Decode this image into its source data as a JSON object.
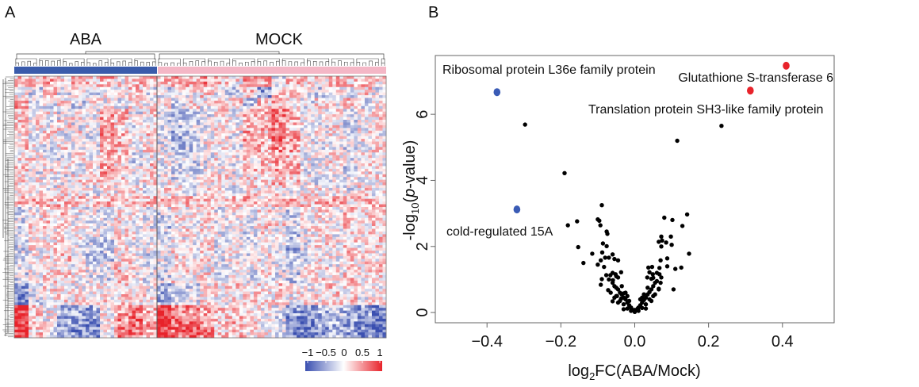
{
  "panels": {
    "a_label": "A",
    "b_label": "B"
  },
  "chart_data": [
    {
      "type": "heatmap",
      "column_groups": [
        {
          "name": "ABA",
          "color": "#3a5bab",
          "columns": 10
        },
        {
          "name": "MOCK",
          "color": "#f4b7c6",
          "columns": 16
        }
      ],
      "colorscale": {
        "min": -1,
        "max": 1,
        "low": "#3a4fb0",
        "mid": "#ffffff",
        "high": "#e8222a",
        "tick_labels": [
          "−1",
          "−0.5",
          "0",
          "0.5",
          "1"
        ]
      },
      "row_dendrogram": true,
      "column_dendrogram": true,
      "matrix_coarse": [
        [
          0.3,
          0.2,
          0.4,
          0.1,
          0.3,
          0.2,
          0.4,
          0.1,
          0.3,
          0.2,
          0.2,
          0.4,
          0.3,
          0.5,
          0.2,
          0.1,
          0.4,
          0.3,
          -0.2,
          0.3,
          0.2,
          0.1,
          0.3,
          0.2,
          0.4,
          0.1
        ],
        [
          0.1,
          -0.2,
          0.2,
          -0.1,
          0.1,
          -0.2,
          0.1,
          0,
          0.2,
          -0.1,
          -0.2,
          0.1,
          0,
          0.2,
          -0.1,
          -0.3,
          0.2,
          -0.5,
          0.3,
          0.1,
          0,
          -0.2,
          0.1,
          -0.1,
          0.2,
          -0.1
        ],
        [
          0.4,
          0,
          -0.1,
          0.1,
          -0.2,
          0.1,
          0,
          -0.1,
          0.1,
          0,
          0.1,
          -0.2,
          0.1,
          0,
          0.1,
          0.2,
          -0.3,
          0.2,
          0.3,
          0.1,
          -0.1,
          0.1,
          0,
          0.2,
          -0.1,
          0
        ],
        [
          0.2,
          -0.1,
          0.1,
          -0.1,
          0.1,
          0,
          0.4,
          0.3,
          -0.1,
          0.1,
          -0.1,
          -0.3,
          -0.3,
          -0.1,
          0.1,
          -0.1,
          0.4,
          0.3,
          0.5,
          0.4,
          0,
          -0.1,
          0.1,
          -0.2,
          0,
          0.1
        ],
        [
          0.2,
          0.1,
          -0.1,
          0.1,
          -0.1,
          0,
          0.4,
          0.2,
          -0.1,
          0.1,
          -0.2,
          -0.3,
          -0.2,
          -0.1,
          0.1,
          0,
          0.3,
          0.3,
          0.5,
          0.3,
          0,
          -0.1,
          0.1,
          -0.2,
          0,
          0.1
        ],
        [
          0.1,
          -0.1,
          0.1,
          -0.1,
          0.1,
          -0.1,
          0.5,
          0.3,
          0,
          0.2,
          -0.1,
          -0.4,
          -0.3,
          -0.1,
          0,
          -0.1,
          0.4,
          0.2,
          0.6,
          0.4,
          -0.1,
          0,
          0.1,
          -0.1,
          0.1,
          0
        ],
        [
          0.2,
          0,
          -0.1,
          0.1,
          0,
          -0.1,
          0.4,
          0.3,
          -0.1,
          0.1,
          -0.1,
          -0.3,
          -0.3,
          0,
          0.1,
          -0.1,
          0.3,
          0.3,
          0.5,
          0.4,
          0,
          -0.1,
          0,
          -0.2,
          0,
          0.1
        ],
        [
          0.1,
          0.1,
          0,
          -0.1,
          0.1,
          0,
          0.3,
          0.2,
          -0.2,
          0.1,
          0,
          -0.2,
          -0.2,
          -0.1,
          0.1,
          0,
          0.2,
          0.2,
          0.4,
          0.3,
          0,
          -0.1,
          0.1,
          -0.1,
          0,
          0.1
        ],
        [
          0.2,
          -0.1,
          0.1,
          0,
          -0.1,
          0,
          0.4,
          0.2,
          -0.1,
          0.2,
          -0.1,
          -0.3,
          -0.2,
          -0.1,
          0,
          -0.1,
          0.3,
          0.2,
          0.4,
          0.3,
          -0.1,
          0,
          0.1,
          -0.2,
          0.1,
          0
        ],
        [
          0.1,
          0,
          0,
          -0.1,
          0.1,
          0.1,
          0.3,
          0.2,
          0,
          0.1,
          0,
          -0.2,
          -0.1,
          0,
          0.1,
          0,
          0.2,
          0.1,
          0.3,
          0.2,
          0,
          -0.1,
          0,
          -0.1,
          0,
          0.1
        ],
        [
          0,
          0.1,
          -0.1,
          0.1,
          0,
          -0.1,
          0.1,
          0,
          0.1,
          -0.1,
          0.1,
          0,
          -0.1,
          0.1,
          0,
          -0.1,
          0.1,
          0,
          0.1,
          -0.1,
          0,
          0.1,
          0,
          -0.1,
          0.1,
          0
        ],
        [
          0.3,
          0.3,
          0.2,
          0.3,
          0.3,
          0.2,
          0.3,
          0.3,
          0.2,
          0.3,
          0.3,
          0.2,
          0.3,
          0.3,
          0.2,
          0.3,
          0.3,
          0.2,
          0.3,
          0.3,
          0.2,
          0.3,
          0.3,
          0.2,
          0.3,
          0.3
        ],
        [
          -0.2,
          0,
          0.1,
          0.2,
          0,
          -0.1,
          -0.2,
          0.1,
          0,
          -0.1,
          -0.2,
          0.1,
          0,
          0.1,
          -0.1,
          0,
          -0.2,
          0.1,
          -0.1,
          -0.3,
          0,
          0.1,
          0,
          0.2,
          0.1,
          0.2
        ],
        [
          -0.2,
          0.1,
          0.2,
          0.2,
          0,
          -0.1,
          -0.1,
          0.1,
          0,
          -0.1,
          -0.3,
          0.1,
          0,
          0.1,
          -0.1,
          0,
          -0.1,
          0.2,
          0.1,
          -0.2,
          0,
          0.1,
          0,
          0.2,
          0.1,
          0.2
        ],
        [
          -0.1,
          0,
          0.1,
          0.1,
          0,
          -0.1,
          -0.2,
          0.1,
          0,
          0,
          -0.2,
          0,
          0.1,
          0.1,
          -0.1,
          0,
          -0.2,
          0.1,
          -0.1,
          -0.3,
          0,
          0.1,
          0,
          0.1,
          0.1,
          0.2
        ],
        [
          -0.2,
          0.1,
          0.1,
          0.2,
          -0.1,
          -0.2,
          -0.3,
          0.1,
          0,
          -0.1,
          -0.2,
          0.1,
          0,
          0.1,
          -0.1,
          0,
          -0.2,
          0.1,
          -0.1,
          -0.4,
          -0.1,
          0.1,
          0,
          0.2,
          0,
          0.2
        ],
        [
          -0.2,
          0,
          0.1,
          0.2,
          0,
          -0.3,
          -0.3,
          0.1,
          0,
          -0.2,
          -0.1,
          0.1,
          0,
          0.1,
          -0.1,
          0,
          -0.2,
          0.1,
          0,
          -0.3,
          -0.2,
          0.1,
          0,
          0.2,
          0.1,
          0.1
        ],
        [
          -0.1,
          0.1,
          0.1,
          0.1,
          0,
          -0.1,
          -0.1,
          0.2,
          0.1,
          -0.1,
          -0.2,
          0.1,
          0.1,
          0,
          -0.1,
          0,
          -0.1,
          0.1,
          -0.1,
          -0.2,
          0,
          0.1,
          0,
          0.1,
          0.1,
          0.2
        ],
        [
          -0.2,
          0,
          0.1,
          0.2,
          0,
          -0.1,
          -0.2,
          0.2,
          0,
          -0.1,
          -0.2,
          0.1,
          0,
          0.1,
          -0.1,
          0,
          -0.2,
          0.1,
          -0.1,
          -0.3,
          0,
          0.1,
          0,
          0.2,
          0.1,
          0.2
        ],
        [
          -0.6,
          -0.2,
          0.1,
          0.1,
          0,
          0.1,
          0.1,
          0.2,
          0.1,
          0,
          -0.4,
          -0.3,
          -0.2,
          0.1,
          0.1,
          0.2,
          0.1,
          0.1,
          0.2,
          0.1,
          0,
          0.1,
          0.2,
          0.1,
          0.1,
          0
        ],
        [
          -0.6,
          -0.2,
          0,
          0.1,
          0.1,
          0,
          0.1,
          0.2,
          0.1,
          0.1,
          -0.5,
          -0.3,
          -0.2,
          0.1,
          0,
          0.1,
          0.2,
          0.1,
          0.1,
          0,
          0.1,
          0.1,
          0.1,
          0.2,
          0,
          0.1
        ],
        [
          0.9,
          0.2,
          0,
          -0.4,
          -0.5,
          -0.5,
          0,
          0.4,
          0.5,
          0.3,
          0.9,
          0.5,
          0.5,
          0.4,
          0.2,
          0.3,
          0.1,
          0,
          -0.2,
          -0.5,
          -0.6,
          -0.4,
          -0.3,
          -0.4,
          -0.5,
          -0.7
        ],
        [
          0.9,
          0.2,
          0,
          -0.5,
          -0.6,
          -0.6,
          0,
          0.5,
          0.6,
          0.4,
          0.9,
          0.6,
          0.6,
          0.5,
          0.2,
          0.3,
          0.1,
          0,
          -0.2,
          -0.6,
          -0.7,
          -0.5,
          -0.4,
          -0.5,
          -0.6,
          -0.8
        ],
        [
          0.9,
          0.2,
          -0.1,
          -0.5,
          -0.6,
          -0.6,
          0,
          0.5,
          0.6,
          0.4,
          0.9,
          0.6,
          0.7,
          0.5,
          0.2,
          0.3,
          0.1,
          0,
          -0.2,
          -0.6,
          -0.7,
          -0.5,
          -0.4,
          -0.5,
          -0.6,
          -0.8
        ]
      ]
    },
    {
      "type": "scatter",
      "xlabel": "log2FC(ABA/Mock)",
      "xlabel_parts": {
        "pre": "log",
        "sub": "2",
        "post": "FC(ABA/Mock)"
      },
      "ylabel_parts": {
        "pre": "-log",
        "sub": "10",
        "mid": "(",
        "ital": "p",
        "post": "-value)"
      },
      "xlim": [
        -0.54,
        0.54
      ],
      "ylim": [
        -0.31,
        7.78
      ],
      "xticks": [
        -0.4,
        -0.2,
        0.0,
        0.2,
        0.4
      ],
      "xtick_labels": [
        "−0.4",
        "−0.2",
        "0.0",
        "0.2",
        "0.4"
      ],
      "yticks": [
        0,
        2,
        4,
        6
      ],
      "ytick_labels": [
        "0",
        "2",
        "4",
        "6"
      ],
      "grid": false,
      "highlighted": [
        {
          "label": "Ribosomal protein L36e family protein",
          "x": -0.373,
          "y": 6.67,
          "color": "#3a5bb5"
        },
        {
          "label": "cold-regulated 15A",
          "x": -0.319,
          "y": 3.12,
          "color": "#3a5bb5"
        },
        {
          "label": "Glutathione S-transferase 6",
          "x": 0.41,
          "y": 7.47,
          "color": "#e8232b"
        },
        {
          "label": "Translation protein SH3-like family protein",
          "x": 0.313,
          "y": 6.72,
          "color": "#e8232b"
        }
      ],
      "point_color": "#000000",
      "points": [
        [
          -0.297,
          5.69
        ],
        [
          0.235,
          5.65
        ],
        [
          0.115,
          5.2
        ],
        [
          -0.19,
          4.22
        ],
        [
          -0.089,
          3.25
        ],
        [
          0.142,
          2.97
        ],
        [
          0.08,
          2.87
        ],
        [
          0.102,
          2.8
        ],
        [
          -0.156,
          2.76
        ],
        [
          -0.181,
          2.64
        ],
        [
          -0.1,
          2.82
        ],
        [
          -0.096,
          2.78
        ],
        [
          -0.093,
          2.64
        ],
        [
          0.129,
          2.62
        ],
        [
          -0.076,
          2.45
        ],
        [
          -0.074,
          2.38
        ],
        [
          0.072,
          2.3
        ],
        [
          0.074,
          2.18
        ],
        [
          0.065,
          2.14
        ],
        [
          0.085,
          2.12
        ],
        [
          0.098,
          2.3
        ],
        [
          0.1,
          2.05
        ],
        [
          -0.086,
          2.09
        ],
        [
          -0.076,
          2.01
        ],
        [
          -0.153,
          1.98
        ],
        [
          0.072,
          2.0
        ],
        [
          0.147,
          1.78
        ],
        [
          -0.115,
          1.78
        ],
        [
          -0.088,
          1.82
        ],
        [
          -0.08,
          1.66
        ],
        [
          -0.07,
          1.66
        ],
        [
          -0.06,
          1.76
        ],
        [
          -0.055,
          1.62
        ],
        [
          -0.045,
          1.58
        ],
        [
          -0.092,
          1.58
        ],
        [
          -0.1,
          1.45
        ],
        [
          -0.083,
          1.38
        ],
        [
          -0.139,
          1.5
        ],
        [
          0.088,
          1.64
        ],
        [
          0.07,
          1.58
        ],
        [
          0.088,
          1.4
        ],
        [
          0.067,
          1.35
        ],
        [
          0.11,
          1.32
        ],
        [
          0.126,
          1.36
        ],
        [
          0.037,
          1.36
        ],
        [
          0.047,
          1.38
        ],
        [
          0.04,
          1.22
        ],
        [
          0.049,
          1.16
        ],
        [
          0.067,
          1.16
        ],
        [
          0.072,
          1.06
        ],
        [
          0.034,
          1.06
        ],
        [
          0.045,
          1.02
        ],
        [
          -0.077,
          1.13
        ],
        [
          -0.066,
          1.13
        ],
        [
          -0.052,
          1.16
        ],
        [
          -0.037,
          1.22
        ],
        [
          -0.059,
          0.98
        ],
        [
          -0.045,
          1.06
        ],
        [
          -0.089,
          1.01
        ],
        [
          -0.092,
          0.84
        ],
        [
          0.105,
          0.7
        ],
        [
          0.065,
          0.72
        ],
        [
          -0.072,
          0.68
        ],
        [
          -0.06,
          0.34
        ],
        [
          -0.048,
          0.5
        ],
        [
          -0.037,
          0.42
        ],
        [
          -0.03,
          0.58
        ],
        [
          -0.06,
          0.9
        ],
        [
          -0.055,
          0.8
        ],
        [
          -0.05,
          0.75
        ],
        [
          -0.045,
          0.7
        ],
        [
          -0.04,
          0.6
        ],
        [
          -0.035,
          0.55
        ],
        [
          -0.03,
          0.45
        ],
        [
          -0.025,
          0.4
        ],
        [
          -0.02,
          0.3
        ],
        [
          -0.015,
          0.22
        ],
        [
          -0.01,
          0.15
        ],
        [
          -0.005,
          0.07
        ],
        [
          0,
          0.02
        ],
        [
          0.005,
          0.08
        ],
        [
          0.01,
          0.15
        ],
        [
          0.015,
          0.22
        ],
        [
          0.02,
          0.3
        ],
        [
          0.025,
          0.38
        ],
        [
          0.03,
          0.45
        ],
        [
          0.035,
          0.55
        ],
        [
          0.04,
          0.62
        ],
        [
          0.045,
          0.7
        ],
        [
          0.05,
          0.8
        ],
        [
          0.055,
          0.9
        ],
        [
          0.06,
          0.95
        ],
        [
          -0.05,
          0.5
        ],
        [
          -0.04,
          0.35
        ],
        [
          -0.03,
          0.25
        ],
        [
          -0.02,
          0.12
        ],
        [
          -0.01,
          0.05
        ],
        [
          0.01,
          0.05
        ],
        [
          0.02,
          0.14
        ],
        [
          0.03,
          0.25
        ],
        [
          0.04,
          0.4
        ],
        [
          0.05,
          0.5
        ],
        [
          -0.065,
          0.6
        ],
        [
          -0.055,
          0.45
        ],
        [
          -0.045,
          0.3
        ],
        [
          0.065,
          0.7
        ],
        [
          0.055,
          0.55
        ],
        [
          0.045,
          0.35
        ],
        [
          -0.07,
          1.0
        ],
        [
          0.07,
          0.9
        ],
        [
          -0.035,
          0.8
        ],
        [
          0.035,
          0.75
        ],
        [
          -0.025,
          0.6
        ],
        [
          0.025,
          0.55
        ],
        [
          -0.015,
          0.35
        ],
        [
          0.015,
          0.4
        ],
        [
          -0.05,
          1.1
        ],
        [
          0.05,
          1.05
        ],
        [
          -0.06,
          1.2
        ],
        [
          0.06,
          1.2
        ],
        [
          -0.008,
          0.1
        ],
        [
          0.008,
          0.12
        ],
        [
          0.0,
          0.08
        ],
        [
          -0.03,
          0.1
        ],
        [
          0.03,
          0.12
        ],
        [
          -0.02,
          0.5
        ],
        [
          0.02,
          0.45
        ]
      ]
    }
  ]
}
